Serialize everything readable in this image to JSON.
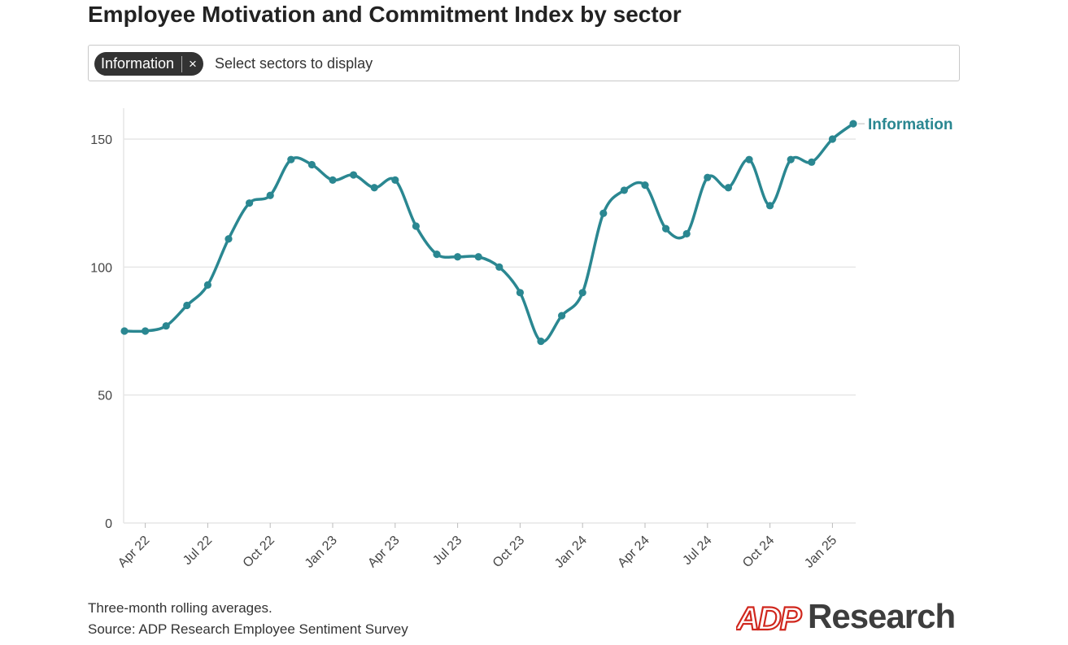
{
  "title": "Employee Motivation and Commitment Index by sector",
  "selector": {
    "chip_label": "Information",
    "chip_remove": "×",
    "placeholder": "Select sectors to display"
  },
  "footnote": {
    "line1": "Three-month rolling averages.",
    "line2": "Source: ADP Research Employee Sentiment Survey"
  },
  "logo": {
    "mark": "ADP",
    "text": "Research"
  },
  "colors": {
    "series": "#2a8791",
    "grid": "#e6e6e6",
    "logo_red": "#d0271d"
  },
  "chart_data": {
    "type": "line",
    "title": "",
    "xlabel": "",
    "ylabel": "",
    "ylim": [
      0,
      160
    ],
    "yticks": [
      0,
      50,
      100,
      150
    ],
    "grid": "horizontal",
    "x": [
      "2022-03",
      "2022-04",
      "2022-05",
      "2022-06",
      "2022-07",
      "2022-08",
      "2022-09",
      "2022-10",
      "2022-11",
      "2022-12",
      "2023-01",
      "2023-02",
      "2023-03",
      "2023-04",
      "2023-05",
      "2023-06",
      "2023-07",
      "2023-08",
      "2023-09",
      "2023-10",
      "2023-11",
      "2023-12",
      "2024-01",
      "2024-02",
      "2024-03",
      "2024-04",
      "2024-05",
      "2024-06",
      "2024-07",
      "2024-08",
      "2024-09",
      "2024-10",
      "2024-11",
      "2024-12",
      "2025-01",
      "2025-02"
    ],
    "xticks": [
      {
        "x": "2022-04",
        "label": "Apr 22"
      },
      {
        "x": "2022-07",
        "label": "Jul 22"
      },
      {
        "x": "2022-10",
        "label": "Oct 22"
      },
      {
        "x": "2023-01",
        "label": "Jan 23"
      },
      {
        "x": "2023-04",
        "label": "Apr 23"
      },
      {
        "x": "2023-07",
        "label": "Jul 23"
      },
      {
        "x": "2023-10",
        "label": "Oct 23"
      },
      {
        "x": "2024-01",
        "label": "Jan 24"
      },
      {
        "x": "2024-04",
        "label": "Apr 24"
      },
      {
        "x": "2024-07",
        "label": "Jul 24"
      },
      {
        "x": "2024-10",
        "label": "Oct 24"
      },
      {
        "x": "2025-01",
        "label": "Jan 25"
      }
    ],
    "series": [
      {
        "name": "Information",
        "values": [
          75,
          75,
          77,
          85,
          93,
          111,
          125,
          128,
          142,
          140,
          134,
          136,
          131,
          134,
          116,
          105,
          104,
          104,
          100,
          90,
          71,
          81,
          90,
          121,
          130,
          132,
          115,
          113,
          135,
          131,
          142,
          124,
          142,
          141,
          150,
          156
        ]
      }
    ]
  }
}
